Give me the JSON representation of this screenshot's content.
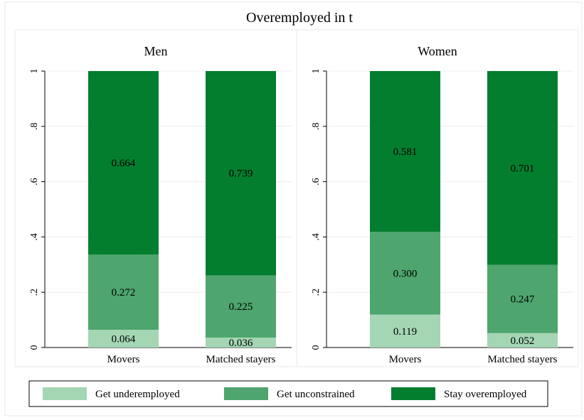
{
  "chart_data": {
    "type": "bar",
    "stacked": true,
    "title": "Overemployed in t",
    "categories": [
      "Movers",
      "Matched stayers"
    ],
    "ylim": [
      0,
      1
    ],
    "yticks": [
      {
        "value": 0,
        "label": "0"
      },
      {
        "value": 0.2,
        "label": ".2"
      },
      {
        "value": 0.4,
        "label": ".4"
      },
      {
        "value": 0.6,
        "label": ".6"
      },
      {
        "value": 0.8,
        "label": ".8"
      },
      {
        "value": 1,
        "label": "1"
      }
    ],
    "grid": true,
    "legend_position": "bottom",
    "series": [
      {
        "name": "Get underemployed",
        "color": "#a4d6b4"
      },
      {
        "name": "Get unconstrained",
        "color": "#4ea56d"
      },
      {
        "name": "Stay overemployed",
        "color": "#037d2e"
      }
    ],
    "panels": [
      {
        "title": "Men",
        "values": [
          [
            0.064,
            0.272,
            0.664
          ],
          [
            0.036,
            0.225,
            0.739
          ]
        ],
        "labels": [
          [
            "0.064",
            "0.272",
            "0.664"
          ],
          [
            "0.036",
            "0.225",
            "0.739"
          ]
        ]
      },
      {
        "title": "Women",
        "values": [
          [
            0.119,
            0.3,
            0.581
          ],
          [
            0.052,
            0.247,
            0.701
          ]
        ],
        "labels": [
          [
            "0.119",
            "0.300",
            "0.581"
          ],
          [
            "0.052",
            "0.247",
            "0.701"
          ]
        ]
      }
    ]
  }
}
